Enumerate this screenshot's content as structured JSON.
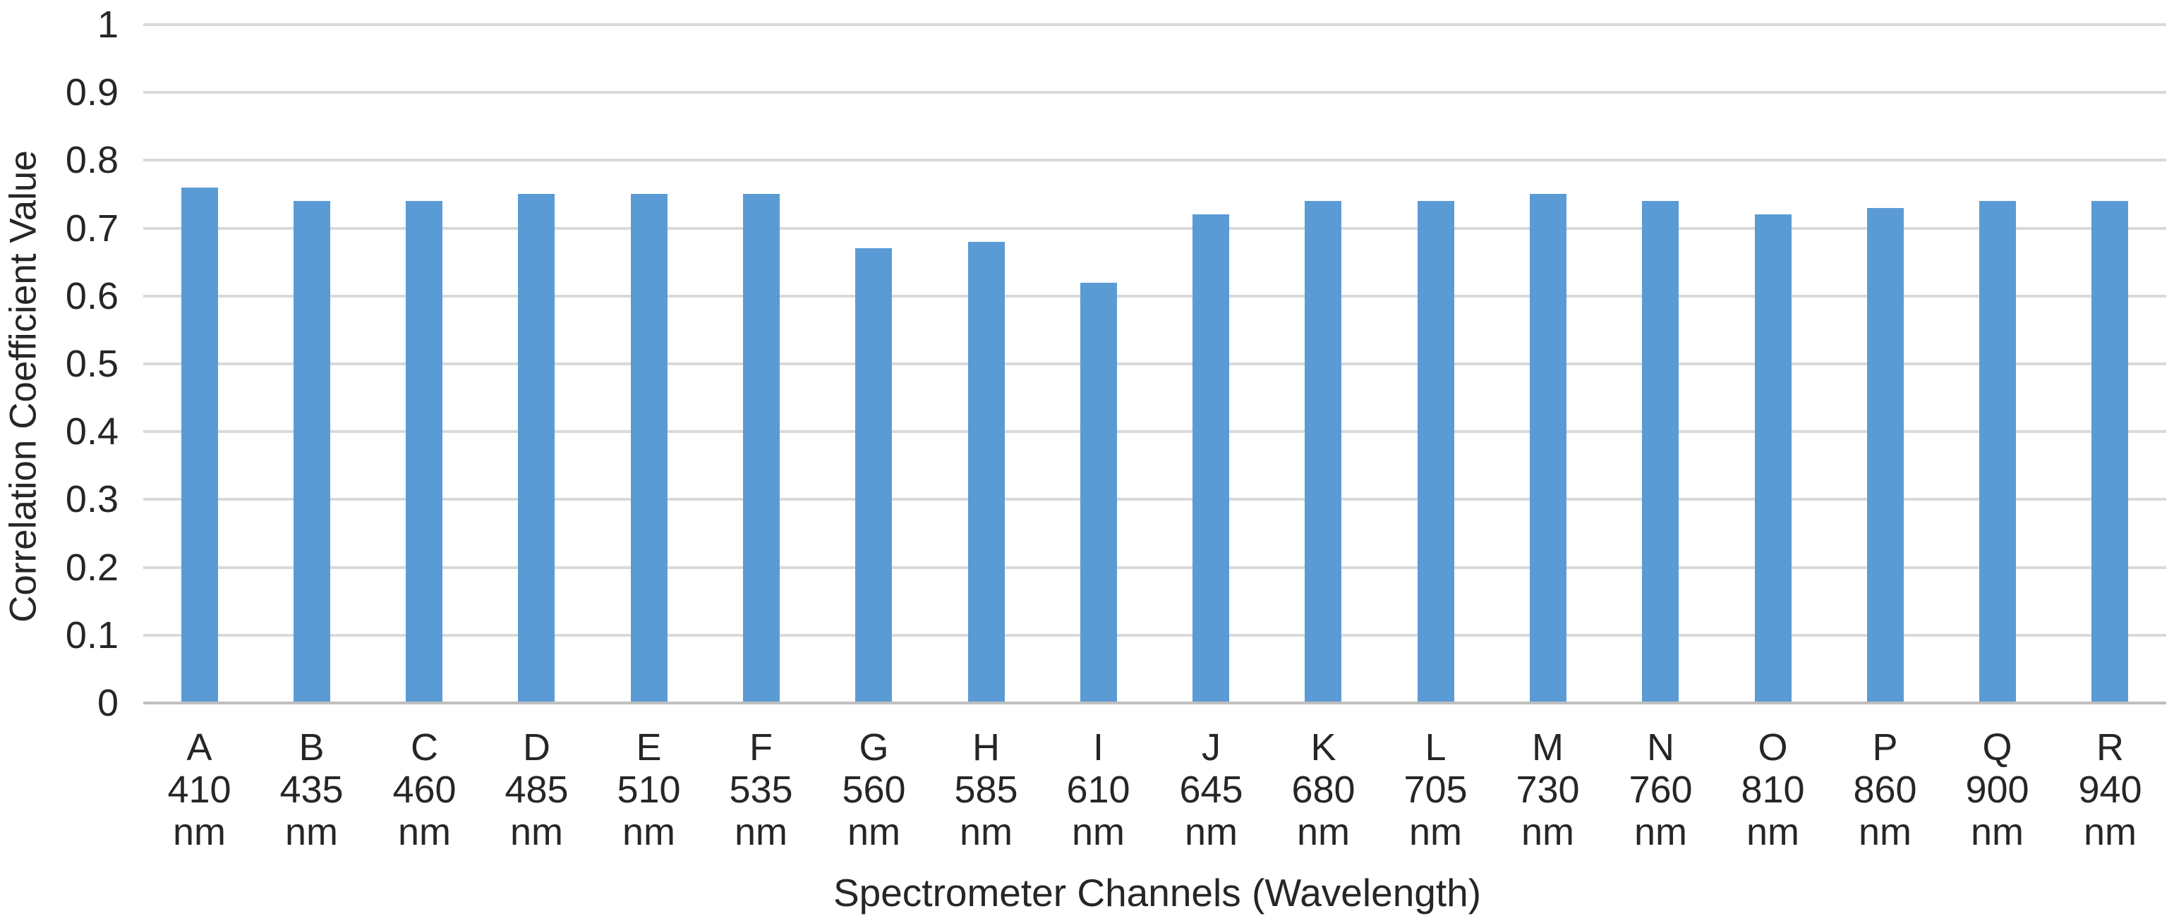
{
  "chart_data": {
    "type": "bar",
    "xlabel": "Spectrometer Channels (Wavelength)",
    "ylabel": "Correlation Coefficient Value",
    "ylim": [
      0,
      1
    ],
    "ytick_step": 0.1,
    "ytick_labels": [
      "0",
      "0.1",
      "0.2",
      "0.3",
      "0.4",
      "0.5",
      "0.6",
      "0.7",
      "0.8",
      "0.9",
      "1"
    ],
    "grid": true,
    "legend_position": "none",
    "categories": [
      "A",
      "B",
      "C",
      "D",
      "E",
      "F",
      "G",
      "H",
      "I",
      "J",
      "K",
      "L",
      "M",
      "N",
      "O",
      "P",
      "Q",
      "R"
    ],
    "wavelengths": [
      "410",
      "435",
      "460",
      "485",
      "510",
      "535",
      "560",
      "585",
      "610",
      "645",
      "680",
      "705",
      "730",
      "760",
      "810",
      "860",
      "900",
      "940"
    ],
    "unit": "nm",
    "values": [
      0.76,
      0.74,
      0.74,
      0.75,
      0.75,
      0.75,
      0.67,
      0.68,
      0.62,
      0.72,
      0.74,
      0.74,
      0.75,
      0.74,
      0.72,
      0.73,
      0.74,
      0.74
    ],
    "bar_color": "#5B9BD5",
    "gridline_color": "#D9D9D9",
    "axis_line_color": "#BFBFBF",
    "text_color": "#262626",
    "background_color": "#FFFFFF"
  }
}
